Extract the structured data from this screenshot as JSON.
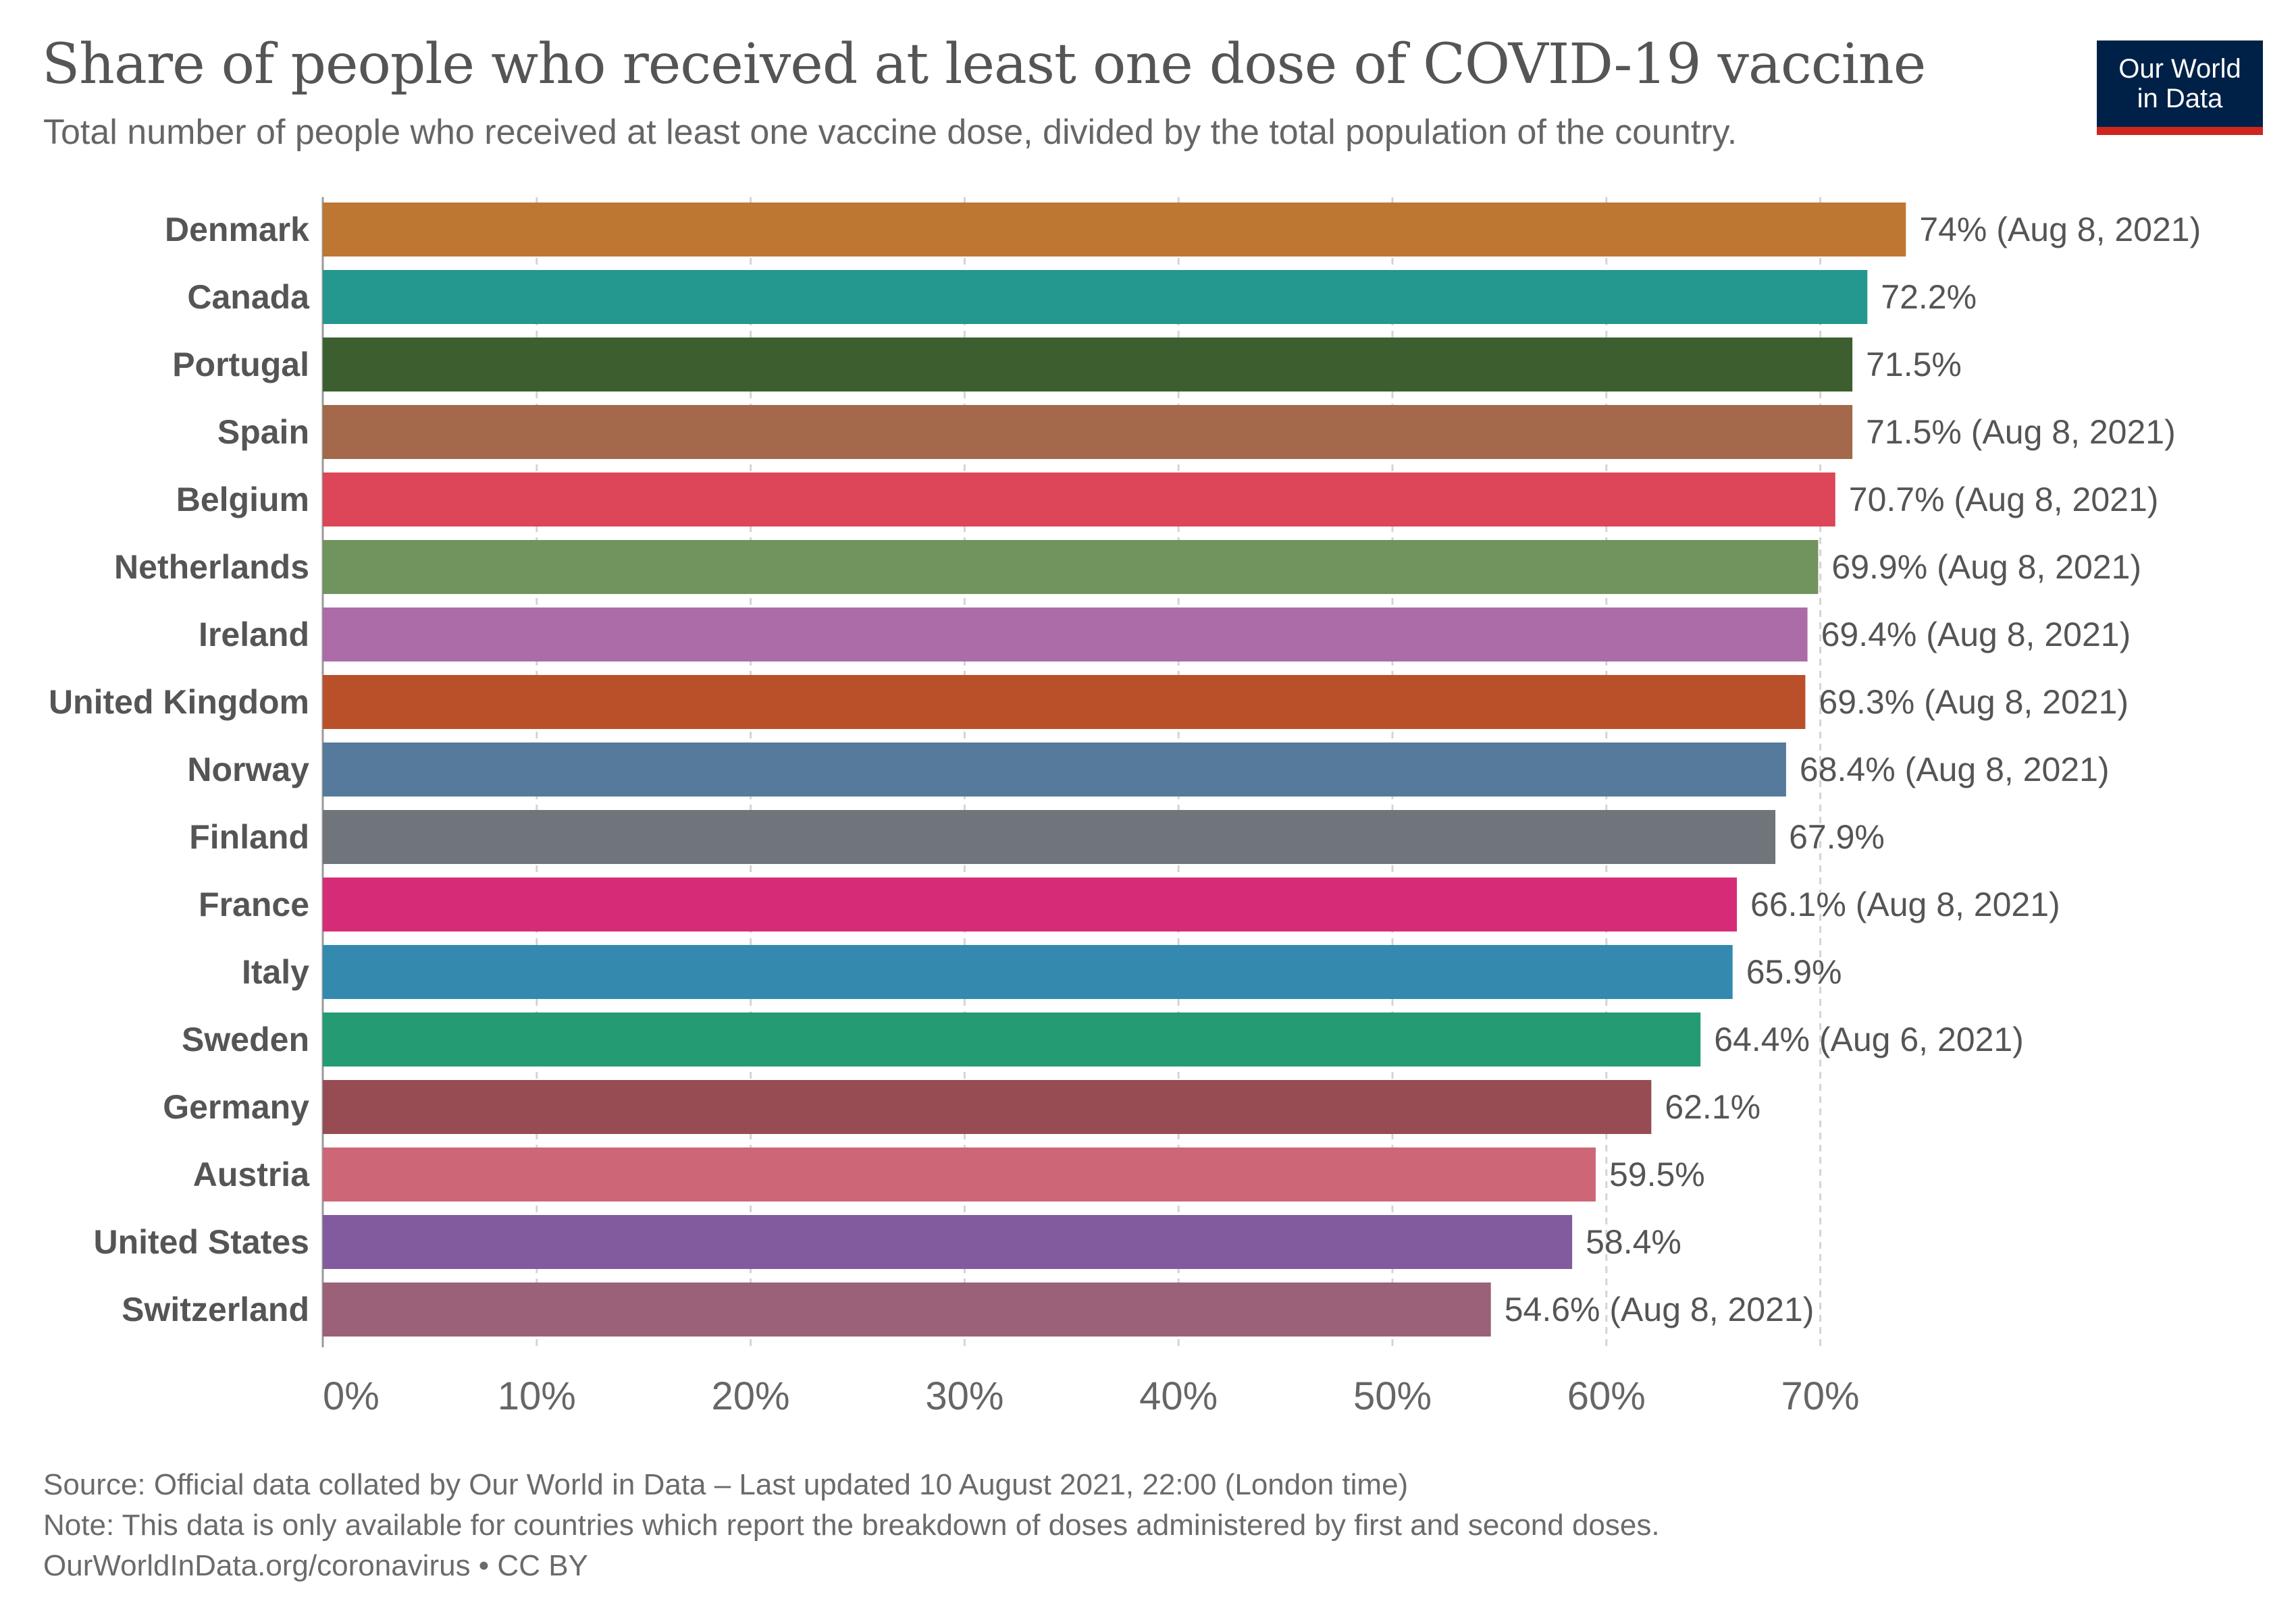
{
  "title": "Share of people who received at least one dose of COVID-19 vaccine",
  "subtitle": "Total number of people who received at least one vaccine dose, divided by the total population of the country.",
  "logo": {
    "line1": "Our World",
    "line2": "in Data"
  },
  "footer": {
    "source": "Source: Official data collated by Our World in Data – Last updated 10 August 2021, 22:00 (London time)",
    "note": "Note: This data is only available for countries which report the breakdown of doses administered by first and second doses.",
    "url": "OurWorldInData.org/coronavirus • CC BY"
  },
  "chart_data": {
    "type": "bar",
    "orientation": "horizontal",
    "categories": [
      "Denmark",
      "Canada",
      "Portugal",
      "Spain",
      "Belgium",
      "Netherlands",
      "Ireland",
      "United Kingdom",
      "Norway",
      "Finland",
      "France",
      "Italy",
      "Sweden",
      "Germany",
      "Austria",
      "United States",
      "Switzerland"
    ],
    "values": [
      74,
      72.2,
      71.5,
      71.5,
      70.7,
      69.9,
      69.4,
      69.3,
      68.4,
      67.9,
      66.1,
      65.9,
      64.4,
      62.1,
      59.5,
      58.4,
      54.6
    ],
    "value_labels": [
      "74% (Aug 8, 2021)",
      "72.2%",
      "71.5%",
      "71.5% (Aug 8, 2021)",
      "70.7% (Aug 8, 2021)",
      "69.9% (Aug 8, 2021)",
      "69.4% (Aug 8, 2021)",
      "69.3% (Aug 8, 2021)",
      "68.4% (Aug 8, 2021)",
      "67.9%",
      "66.1% (Aug 8, 2021)",
      "65.9%",
      "64.4% (Aug 6, 2021)",
      "62.1%",
      "59.5%",
      "58.4%",
      "54.6% (Aug 8, 2021)"
    ],
    "colors": [
      "#be7733",
      "#24978f",
      "#3d5f30",
      "#a4694a",
      "#dc4658",
      "#71935e",
      "#ab6ca7",
      "#b9502a",
      "#557a9b",
      "#70747b",
      "#d62c78",
      "#338aae",
      "#249b73",
      "#974c53",
      "#cd6778",
      "#825b9e",
      "#9a6179"
    ],
    "xlim": [
      0,
      70
    ],
    "xticks": [
      0,
      10,
      20,
      30,
      40,
      50,
      60,
      70
    ],
    "xtick_labels": [
      "0%",
      "10%",
      "20%",
      "30%",
      "40%",
      "50%",
      "60%",
      "70%"
    ],
    "grid": true,
    "title": "Share of people who received at least one dose of COVID-19 vaccine",
    "xlabel": "",
    "ylabel": ""
  }
}
